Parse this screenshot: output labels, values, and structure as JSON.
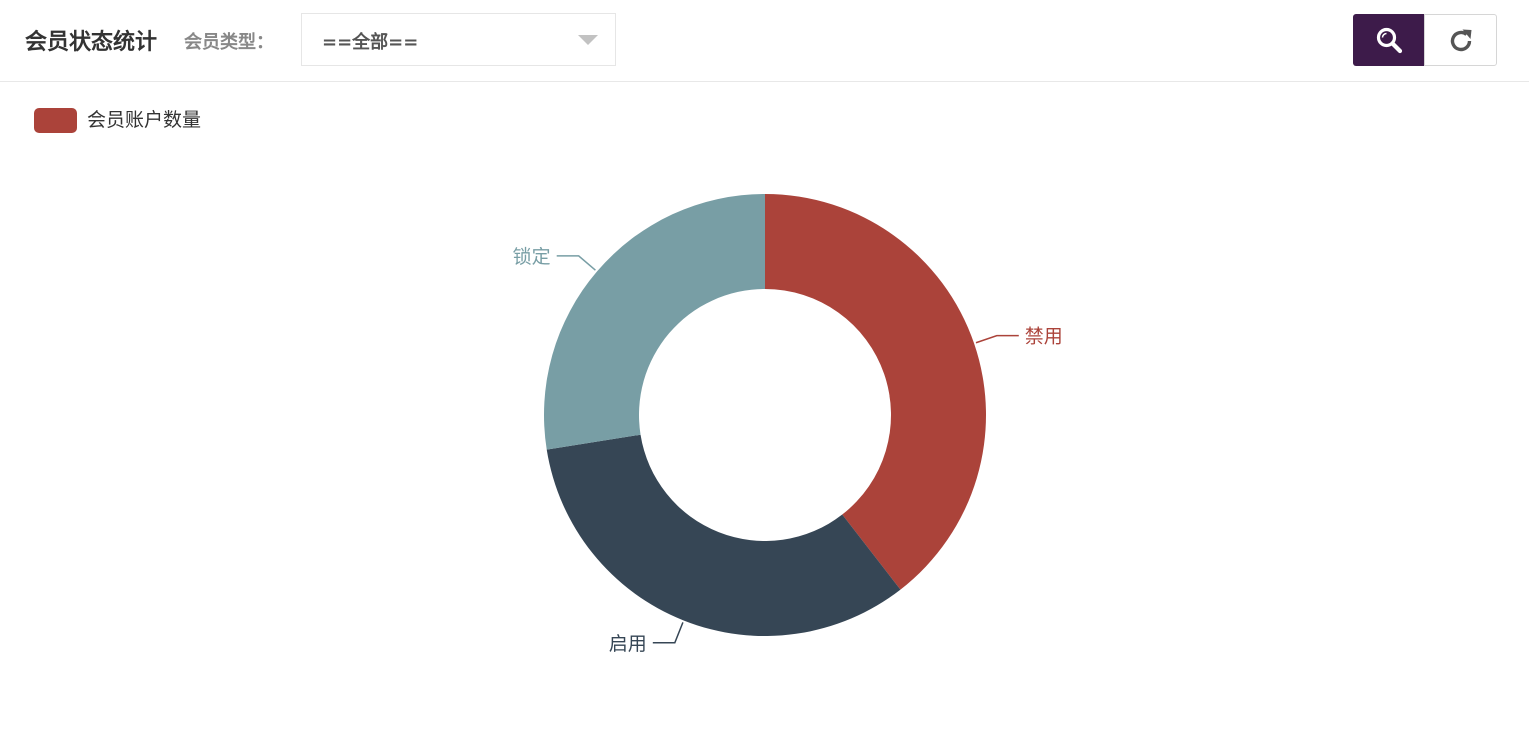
{
  "header": {
    "title": "会员状态统计",
    "filter_label": "会员类型：",
    "filter_value": "==全部==",
    "search_icon": "search-icon",
    "refresh_icon": "refresh-icon"
  },
  "colors": {
    "accent": "#3d1b4a",
    "disabled": "#ab433a",
    "enabled": "#364655",
    "locked": "#789ea5"
  },
  "chart_data": {
    "type": "pie",
    "variant": "donut",
    "legend": {
      "placement": "top-left",
      "entries": [
        {
          "name": "会员账户数量",
          "color": "#ab433a"
        }
      ]
    },
    "series": [
      {
        "name": "会员账户数量",
        "data": [
          {
            "name": "禁用",
            "value": 39.5,
            "color": "#ab433a"
          },
          {
            "name": "启用",
            "value": 33.0,
            "color": "#364655"
          },
          {
            "name": "锁定",
            "value": 27.5,
            "color": "#789ea5"
          }
        ]
      }
    ]
  }
}
